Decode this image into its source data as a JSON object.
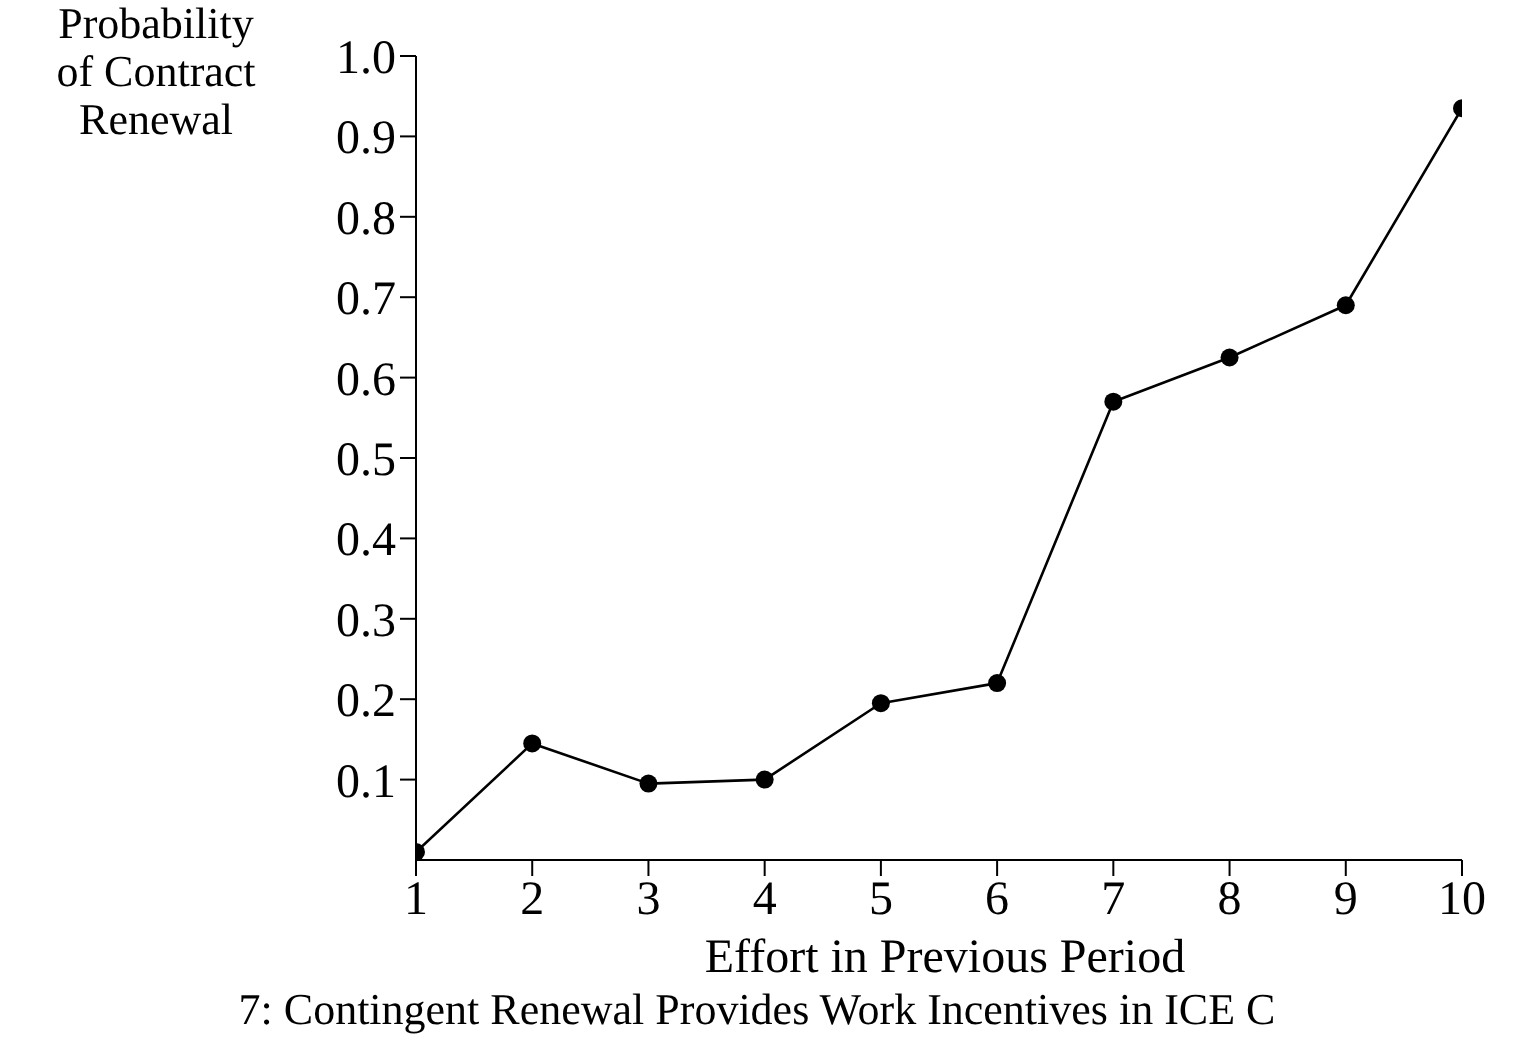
{
  "chart_data": {
    "type": "line",
    "xlabel": "Effort in Previous Period",
    "ylabel": "Probability\nof Contract\nRenewal",
    "annotations": [
      "7: Contingent Renewal Provides Work Incentives in ICE C"
    ],
    "x": [
      1,
      2,
      3,
      4,
      5,
      6,
      7,
      8,
      9,
      10
    ],
    "series": [
      {
        "color": "#000000",
        "values": [
          0.01,
          0.145,
          0.095,
          0.1,
          0.195,
          0.22,
          0.57,
          0.625,
          0.69,
          0.935
        ]
      }
    ],
    "xlim": [
      1,
      10
    ],
    "xticks": [
      1,
      2,
      3,
      4,
      5,
      6,
      7,
      8,
      9,
      10
    ],
    "ylim": [
      0,
      1
    ],
    "yticks": [
      0.1,
      0.2,
      0.3,
      0.4,
      0.5,
      0.6,
      0.7,
      0.8,
      0.9,
      {
        "value": 1,
        "label": "1.0"
      }
    ],
    "grid": false,
    "marker": "circle",
    "line_style": "solid"
  }
}
